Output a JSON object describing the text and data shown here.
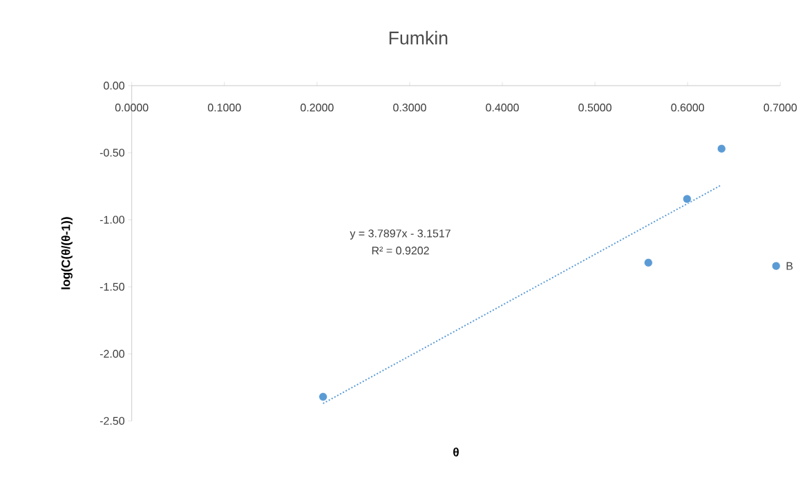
{
  "chart_data": {
    "type": "scatter",
    "title": "Fumkin",
    "xlabel": "θ",
    "ylabel": "log(C(θ/(θ-1))",
    "xlim": [
      0,
      0.7
    ],
    "ylim": [
      -2.5,
      0
    ],
    "xticks": [
      {
        "value": 0,
        "label": "0.0000"
      },
      {
        "value": 0.1,
        "label": "0.1000"
      },
      {
        "value": 0.2,
        "label": "0.2000"
      },
      {
        "value": 0.3,
        "label": "0.3000"
      },
      {
        "value": 0.4,
        "label": "0.4000"
      },
      {
        "value": 0.5,
        "label": "0.5000"
      },
      {
        "value": 0.6,
        "label": "0.6000"
      },
      {
        "value": 0.7,
        "label": "0.7000"
      }
    ],
    "yticks": [
      {
        "value": -2.5,
        "label": "-2.50"
      },
      {
        "value": -2,
        "label": "-2.00"
      },
      {
        "value": -1.5,
        "label": "-1.50"
      },
      {
        "value": -1,
        "label": "-1.00"
      },
      {
        "value": -0.5,
        "label": "-0.50"
      },
      {
        "value": 0,
        "label": "0.00"
      }
    ],
    "marker": "circle",
    "series": [
      {
        "type": "scatter",
        "color": "#5b9bd5",
        "x": [
          0.2065,
          0.5576,
          0.5994,
          0.6366,
          0.6955
        ],
        "values": [
          -2.32,
          -1.32,
          -0.845,
          -0.47,
          -1.345
        ]
      },
      {
        "type": "line",
        "color": "#5b9bd5",
        "line_style": "dotted",
        "marker": "none",
        "x": [
          0.2065,
          0.6366
        ],
        "values": [
          -2.37,
          -0.74
        ]
      }
    ],
    "annotations": [
      {
        "text": "B",
        "x": 0.6955,
        "y": -1.345
      },
      "y = 3.7897x - 3.1517",
      "R² = 0.9202"
    ]
  }
}
